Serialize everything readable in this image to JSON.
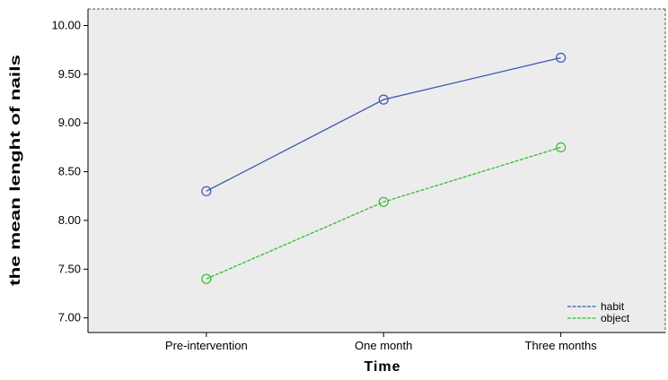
{
  "chart_data": {
    "type": "line",
    "title": "",
    "xlabel": "Time",
    "ylabel": "the mean lenght of nails",
    "categories": [
      "Pre-intervention",
      "One month",
      "Three months"
    ],
    "yticks": [
      "7.00",
      "7.50",
      "8.00",
      "8.50",
      "9.00",
      "9.50",
      "10.00"
    ],
    "ylim": [
      6.85,
      10.17
    ],
    "grid": false,
    "legend_position": "bottom-right",
    "series": [
      {
        "name": "habit",
        "values": [
          8.3,
          9.24,
          9.67
        ],
        "color": "#3b56b0",
        "dash": "solid",
        "marker": "circle"
      },
      {
        "name": "object",
        "values": [
          7.4,
          8.19,
          8.75
        ],
        "color": "#33bb33",
        "dash": "dashed",
        "marker": "circle"
      }
    ],
    "plot_background": "#ececec"
  }
}
